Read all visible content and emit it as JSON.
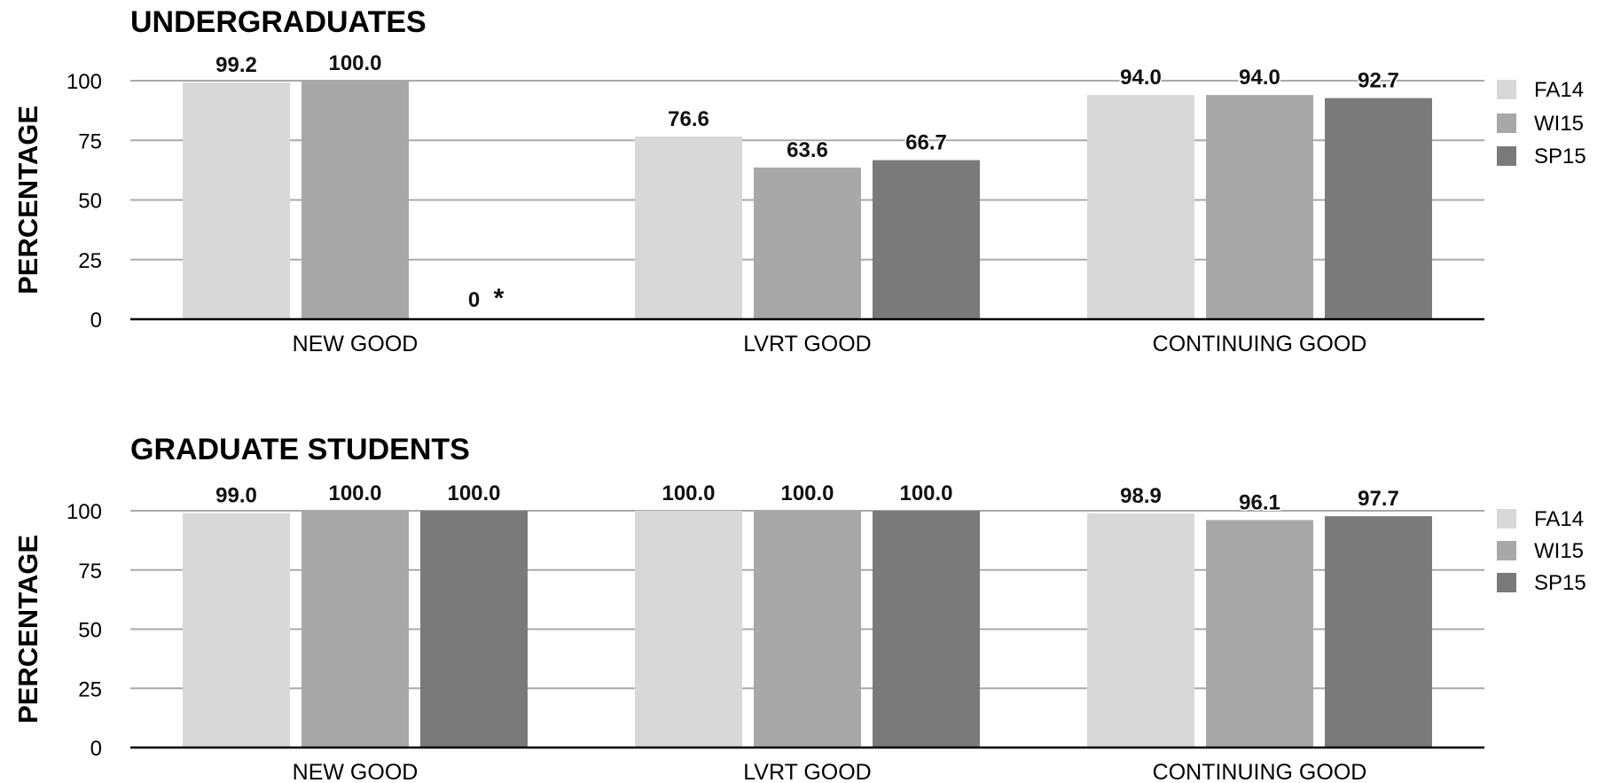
{
  "chart_data": [
    {
      "type": "bar",
      "title": "UNDERGRADUATES",
      "ylabel": "PERCENTAGE",
      "xlabel": "",
      "ylim": [
        0,
        100
      ],
      "yticks": [
        "0",
        "25",
        "50",
        "75",
        "100"
      ],
      "grid": true,
      "legend_position": "right",
      "categories": [
        "NEW GOOD",
        "LVRT GOOD",
        "CONTINUING GOOD"
      ],
      "series": [
        {
          "name": "FA14",
          "color": "#d8d8d8",
          "values": [
            99.2,
            76.6,
            94.0
          ],
          "labels": [
            "99.2",
            "76.6",
            "94.0"
          ]
        },
        {
          "name": "WI15",
          "color": "#a8a8a8",
          "values": [
            100.0,
            63.6,
            94.0
          ],
          "labels": [
            "100.0",
            "63.6",
            "94.0"
          ]
        },
        {
          "name": "SP15",
          "color": "#7a7a7a",
          "values": [
            0,
            66.7,
            92.7
          ],
          "labels": [
            "0",
            "66.7",
            "92.7"
          ]
        }
      ],
      "annotations": [
        {
          "text": "*",
          "category": "NEW GOOD",
          "series": "SP15"
        }
      ]
    },
    {
      "type": "bar",
      "title": "GRADUATE STUDENTS",
      "ylabel": "PERCENTAGE",
      "xlabel": "",
      "ylim": [
        0,
        100
      ],
      "yticks": [
        "0",
        "25",
        "50",
        "75",
        "100"
      ],
      "grid": true,
      "legend_position": "right",
      "categories": [
        "NEW GOOD",
        "LVRT GOOD",
        "CONTINUING GOOD"
      ],
      "series": [
        {
          "name": "FA14",
          "color": "#d8d8d8",
          "values": [
            99.0,
            100.0,
            98.9
          ],
          "labels": [
            "99.0",
            "100.0",
            "98.9"
          ]
        },
        {
          "name": "WI15",
          "color": "#a8a8a8",
          "values": [
            100.0,
            100.0,
            96.1
          ],
          "labels": [
            "100.0",
            "100.0",
            "96.1"
          ]
        },
        {
          "name": "SP15",
          "color": "#7a7a7a",
          "values": [
            100.0,
            100.0,
            97.7
          ],
          "labels": [
            "100.0",
            "100.0",
            "97.7"
          ]
        }
      ],
      "annotations": []
    }
  ]
}
